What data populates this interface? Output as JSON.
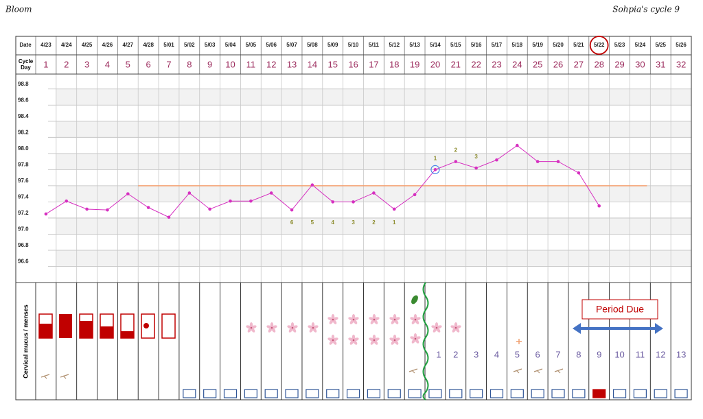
{
  "header": {
    "app": "Bloom",
    "cycle_title": "Sohpia's cycle 9"
  },
  "chart_data": {
    "type": "line",
    "row_labels": {
      "date": "Date",
      "cycle_day": "Cycle Day"
    },
    "categories": [
      "4/23",
      "4/24",
      "4/25",
      "4/26",
      "4/27",
      "4/28",
      "5/01",
      "5/02",
      "5/03",
      "5/04",
      "5/05",
      "5/06",
      "5/07",
      "5/08",
      "5/09",
      "5/10",
      "5/11",
      "5/12",
      "5/13",
      "5/14",
      "5/15",
      "5/16",
      "5/17",
      "5/18",
      "5/19",
      "5/20",
      "5/21",
      "5/22",
      "5/23",
      "5/24",
      "5/25",
      "5/26"
    ],
    "cycle_days": [
      1,
      2,
      3,
      4,
      5,
      6,
      7,
      8,
      9,
      10,
      11,
      12,
      13,
      14,
      15,
      16,
      17,
      18,
      19,
      20,
      21,
      22,
      23,
      24,
      25,
      26,
      27,
      28,
      29,
      30,
      31,
      32
    ],
    "values": [
      97.25,
      97.41,
      97.31,
      97.3,
      97.5,
      97.33,
      97.21,
      97.51,
      97.31,
      97.41,
      97.41,
      97.51,
      97.3,
      97.61,
      97.4,
      97.4,
      97.51,
      97.31,
      97.49,
      97.8,
      97.9,
      97.82,
      97.92,
      98.1,
      97.9,
      97.9,
      97.76,
      97.35,
      null,
      null,
      null,
      null
    ],
    "color": "#d62fc0",
    "ylim": [
      96.4,
      98.9
    ],
    "yticks": [
      96.6,
      96.8,
      {
        "value": 97,
        "label": "97.0"
      },
      97.2,
      97.4,
      97.6,
      97.8,
      {
        "value": 98,
        "label": "98.0"
      },
      98.2,
      98.4,
      98.6,
      98.8
    ],
    "grid": true,
    "coverline": {
      "value": 97.6,
      "from": "4/28",
      "to": "5/24",
      "color": "#f4a070"
    },
    "annotations": [
      {
        "x": "5/07",
        "label": "6",
        "position": "below"
      },
      {
        "x": "5/08",
        "label": "5",
        "position": "below"
      },
      {
        "x": "5/09",
        "label": "4",
        "position": "below"
      },
      {
        "x": "5/10",
        "label": "3",
        "position": "below"
      },
      {
        "x": "5/11",
        "label": "2",
        "position": "below"
      },
      {
        "x": "5/12",
        "label": "1",
        "position": "below"
      },
      {
        "x": "5/14",
        "label": "1",
        "position": "above"
      },
      {
        "x": "5/15",
        "label": "2",
        "position": "above"
      },
      {
        "x": "5/16",
        "label": "3",
        "position": "above"
      }
    ],
    "ovulation_date": "5/14",
    "highlight_date": "5/22",
    "section_label": "Cervical mucus / menses",
    "period_due": "Period Due",
    "dpo": {
      "start": "5/14",
      "values": [
        1,
        2,
        3,
        4,
        5,
        6,
        7,
        8,
        9,
        10,
        11,
        12,
        13
      ]
    }
  }
}
